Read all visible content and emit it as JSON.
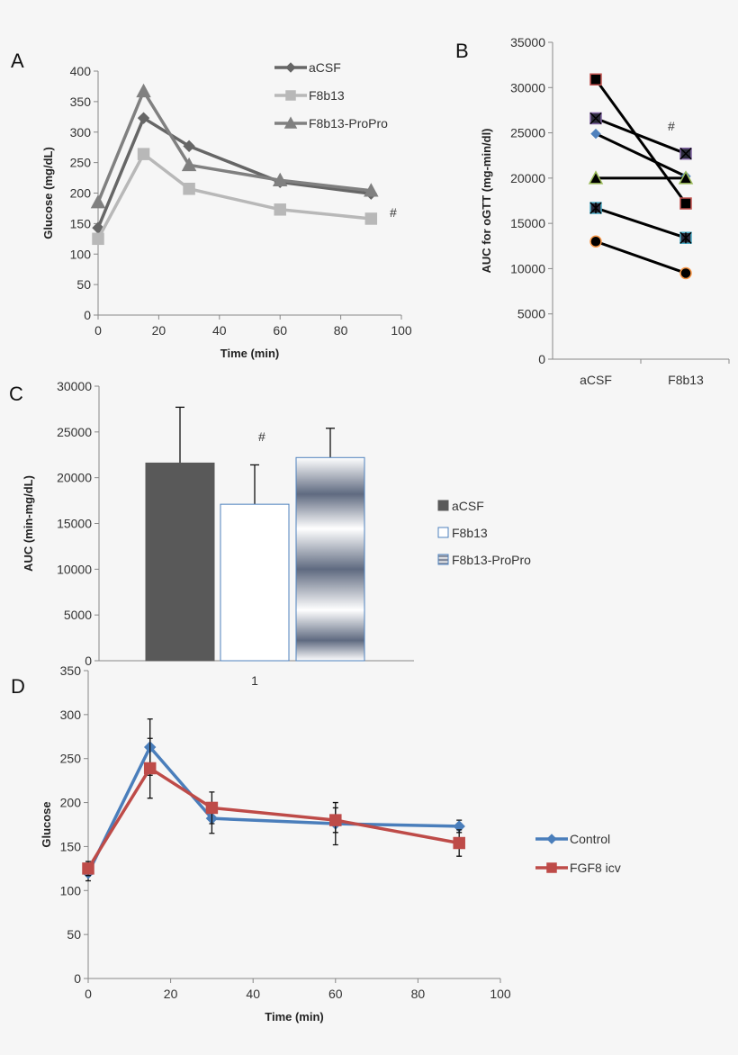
{
  "chart_data": [
    {
      "panel": "A",
      "type": "line",
      "xlabel": "Time (min)",
      "ylabel": "Glucose (mg/dL)",
      "xlim": [
        0,
        100
      ],
      "ylim": [
        0,
        400
      ],
      "xticks": [
        0,
        20,
        40,
        60,
        80,
        100
      ],
      "yticks": [
        0,
        50,
        100,
        150,
        200,
        250,
        300,
        350,
        400
      ],
      "x": [
        0,
        15,
        30,
        60,
        90
      ],
      "series": [
        {
          "name": "aCSF",
          "values": [
            143,
            323,
            277,
            218,
            199
          ],
          "color": "#666666",
          "marker": "diamond"
        },
        {
          "name": "F8b13",
          "values": [
            125,
            264,
            207,
            173,
            158
          ],
          "color": "#b8b8b8",
          "marker": "square"
        },
        {
          "name": "F8b13-ProPro",
          "values": [
            185,
            367,
            246,
            221,
            204
          ],
          "color": "#808080",
          "marker": "triangle"
        }
      ],
      "annotation": "#",
      "legend": "top-right",
      "grid": false
    },
    {
      "panel": "B",
      "type": "line",
      "ylabel": "AUC for oGTT (mg-min/dl)",
      "categories": [
        "aCSF",
        "F8b13"
      ],
      "ylim": [
        0,
        35000
      ],
      "yticks": [
        0,
        5000,
        10000,
        15000,
        20000,
        25000,
        30000,
        35000
      ],
      "series": [
        {
          "values": [
            30900,
            17200
          ],
          "marker": "square",
          "color": "#c0504d"
        },
        {
          "values": [
            26600,
            22700
          ],
          "marker": "x-square",
          "color": "#8064a2"
        },
        {
          "values": [
            24900,
            20200
          ],
          "marker": "diamond",
          "color": "#4f81bd"
        },
        {
          "values": [
            20000,
            20000
          ],
          "marker": "triangle",
          "color": "#9bbb59"
        },
        {
          "values": [
            16700,
            13400
          ],
          "marker": "star-square",
          "color": "#4bacc6"
        },
        {
          "values": [
            13000,
            9500
          ],
          "marker": "circle",
          "color": "#f79646"
        }
      ],
      "annotation": "#",
      "grid": false
    },
    {
      "panel": "C",
      "type": "bar",
      "ylabel": "AUC (min-mg/dL)",
      "categories": [
        "1"
      ],
      "ylim": [
        0,
        30000
      ],
      "yticks": [
        0,
        5000,
        10000,
        15000,
        20000,
        25000,
        30000
      ],
      "series": [
        {
          "name": "aCSF",
          "values": [
            21600
          ],
          "error_upper": [
            27700
          ],
          "fill": "#595959"
        },
        {
          "name": "F8b13",
          "values": [
            17100
          ],
          "error_upper": [
            21400
          ],
          "fill": "#ffffff"
        },
        {
          "name": "F8b13-ProPro",
          "values": [
            22200
          ],
          "error_upper": [
            25400
          ],
          "fill": "gradient"
        }
      ],
      "annotation": "#",
      "legend": "right",
      "grid": false
    },
    {
      "panel": "D",
      "type": "line",
      "xlabel": "Time (min)",
      "ylabel": "Glucose",
      "xlim": [
        0,
        100
      ],
      "ylim": [
        0,
        350
      ],
      "xticks": [
        0,
        20,
        40,
        60,
        80,
        100
      ],
      "yticks": [
        0,
        50,
        100,
        150,
        200,
        250,
        300,
        350
      ],
      "x": [
        0,
        15,
        30,
        60,
        90
      ],
      "series": [
        {
          "name": "Control",
          "values": [
            120,
            263,
            182,
            176,
            173
          ],
          "error": [
            9,
            32,
            17,
            24,
            7
          ],
          "color": "#4a7ebb",
          "marker": "diamond"
        },
        {
          "name": "FGF8 icv",
          "values": [
            125,
            239,
            194,
            180,
            154
          ],
          "error": [
            8,
            34,
            18,
            14,
            15
          ],
          "color": "#be4b48",
          "marker": "square"
        }
      ],
      "legend": "right",
      "grid": false
    }
  ]
}
